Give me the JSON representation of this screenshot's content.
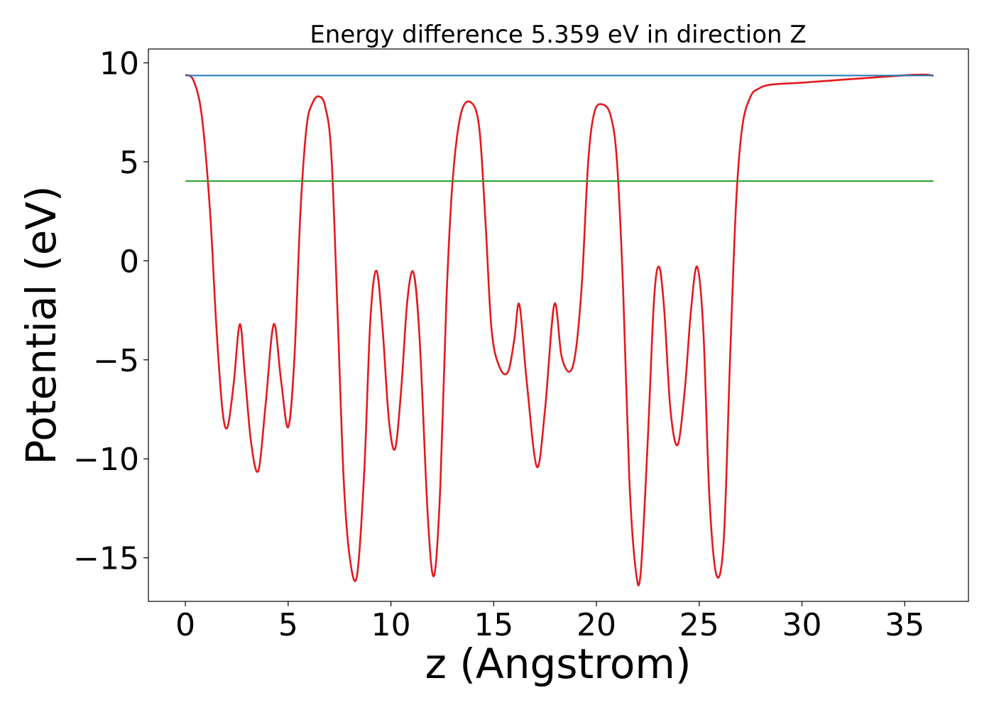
{
  "chart_data": {
    "type": "line",
    "title": "Energy difference 5.359 eV in direction Z",
    "xlabel": "z (Angstrom)",
    "ylabel": "Potential (eV)",
    "xlim": [
      -1.8,
      38.1
    ],
    "ylim": [
      -17.2,
      10.7
    ],
    "xticks": [
      0,
      5,
      10,
      15,
      20,
      25,
      30,
      35
    ],
    "yticks": [
      10,
      5,
      0,
      -5,
      -10,
      -15
    ],
    "xtick_labels": [
      "0",
      "5",
      "10",
      "15",
      "20",
      "25",
      "30",
      "35"
    ],
    "ytick_labels": [
      "10",
      "5",
      "0",
      "−5",
      "−10",
      "−15"
    ],
    "grid": false,
    "legend": "none",
    "colors": {
      "potential": "#e3191c",
      "vacuum_level": "#1f77b4",
      "fermi_level": "#2ca02c",
      "axes": "#000000"
    },
    "series": [
      {
        "color": "#e3191c",
        "x": [
          0,
          0.4,
          0.8,
          1.2,
          1.5,
          1.8,
          2.05,
          2.35,
          2.65,
          2.9,
          3.2,
          3.55,
          3.9,
          4.3,
          4.65,
          5.0,
          5.3,
          5.6,
          5.9,
          6.2,
          6.5,
          6.8,
          7.1,
          7.4,
          7.7,
          8.0,
          8.35,
          8.7,
          9.0,
          9.3,
          9.6,
          9.9,
          10.2,
          10.5,
          10.8,
          11.1,
          11.4,
          11.8,
          12.1,
          12.4,
          12.7,
          13.0,
          13.4,
          13.9,
          14.3,
          14.6,
          14.9,
          15.3,
          15.7,
          16.0,
          16.25,
          16.6,
          17.1,
          17.5,
          17.95,
          18.3,
          18.7,
          19.0,
          19.3,
          19.6,
          19.9,
          20.3,
          20.7,
          21.0,
          21.3,
          21.6,
          21.9,
          22.15,
          22.5,
          22.8,
          23.05,
          23.3,
          23.6,
          23.95,
          24.3,
          24.6,
          24.9,
          25.2,
          25.5,
          25.85,
          26.2,
          26.5,
          26.8,
          27.1,
          27.5,
          27.9,
          28.5,
          30,
          32,
          34,
          35.5,
          36.1,
          36.4
        ],
        "y": [
          9.4,
          9.1,
          7.3,
          2.5,
          -3.2,
          -7.5,
          -8.4,
          -6.2,
          -3.2,
          -5.8,
          -9.2,
          -10.6,
          -7.3,
          -3.2,
          -6.0,
          -8.4,
          -5.0,
          2.5,
          6.8,
          8.0,
          8.3,
          7.8,
          5.4,
          -2.5,
          -11.0,
          -15.0,
          -15.9,
          -10.7,
          -3.0,
          -0.5,
          -3.5,
          -8.0,
          -9.5,
          -6.5,
          -2.0,
          -0.6,
          -4.0,
          -13.0,
          -15.9,
          -11.5,
          -2.0,
          4.0,
          7.4,
          8.0,
          6.7,
          2.0,
          -3.5,
          -5.4,
          -5.6,
          -4.0,
          -2.2,
          -6.0,
          -10.4,
          -7.5,
          -2.2,
          -4.8,
          -5.6,
          -4.5,
          -1.0,
          5.0,
          7.5,
          7.9,
          7.3,
          5.0,
          -1.5,
          -11.0,
          -15.5,
          -15.8,
          -9.0,
          -2.0,
          -0.3,
          -2.5,
          -7.5,
          -9.3,
          -6.5,
          -2.5,
          -0.3,
          -3.5,
          -12.0,
          -15.9,
          -14.0,
          -5.0,
          3.0,
          6.8,
          8.3,
          8.7,
          8.9,
          9.0,
          9.15,
          9.3,
          9.4,
          9.4,
          9.35
        ]
      },
      {
        "color": "#1f77b4",
        "x": [
          0,
          36.4
        ],
        "y": [
          9.36,
          9.36
        ]
      },
      {
        "color": "#2ca02c",
        "x": [
          0,
          36.4
        ],
        "y": [
          4.03,
          4.03
        ]
      }
    ]
  }
}
